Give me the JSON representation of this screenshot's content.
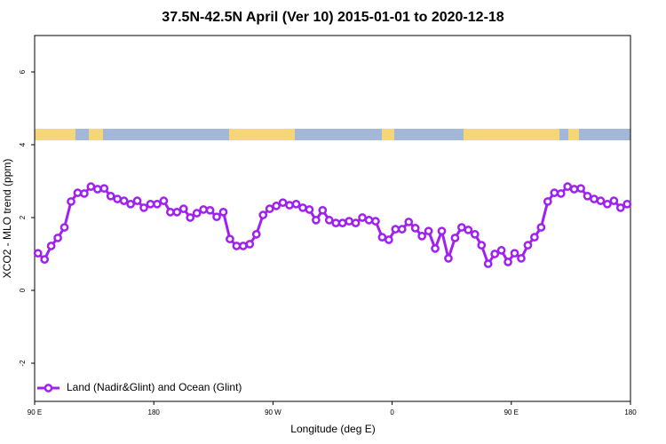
{
  "chart_data": {
    "type": "line",
    "title": "37.5N-42.5N April (Ver 10)   2015-01-01 to 2020-12-18",
    "x_label": "Longitude (deg E)",
    "y_label": "XCO2 - MLO trend (ppm)",
    "xlim": [
      90,
      540
    ],
    "ylim": [
      -3,
      7
    ],
    "xticks": [
      {
        "value": 90,
        "label": "90 E"
      },
      180,
      {
        "value": 270,
        "label": "90 W"
      },
      {
        "value": 360,
        "label": "0"
      },
      {
        "value": 450,
        "label": "90 E"
      },
      {
        "value": 540,
        "label": "180"
      }
    ],
    "yticks": [
      -2,
      0,
      2,
      4,
      6
    ],
    "legend": "bottom-left",
    "x": [
      92.5,
      97.5,
      102.5,
      107.5,
      112.5,
      117.5,
      122.5,
      127.5,
      132.5,
      137.5,
      142.5,
      147.5,
      152.5,
      157.5,
      162.5,
      167.5,
      172.5,
      177.5,
      182.5,
      187.5,
      192.5,
      197.5,
      202.5,
      207.5,
      212.5,
      217.5,
      222.5,
      227.5,
      232.5,
      237.5,
      242.5,
      247.5,
      252.5,
      257.5,
      262.5,
      267.5,
      272.5,
      277.5,
      282.5,
      287.5,
      292.5,
      297.5,
      302.5,
      307.5,
      312.5,
      317.5,
      322.5,
      327.5,
      332.5,
      337.5,
      342.5,
      347.5,
      352.5,
      357.5,
      362.5,
      367.5,
      372.5,
      377.5,
      382.5,
      387.5,
      392.5,
      397.5,
      402.5,
      407.5,
      412.5,
      417.5,
      422.5,
      427.5,
      432.5,
      437.5,
      442.5,
      447.5,
      452.5,
      457.5,
      462.5,
      467.5,
      472.5,
      477.5,
      482.5,
      487.5,
      492.5,
      497.5,
      502.5,
      507.5,
      512.5,
      517.5,
      522.5,
      527.5,
      532.5,
      537.5
    ],
    "series": [
      {
        "name": "Land (Nadir&Glint) and Ocean (Glint)",
        "color": "#a020f0",
        "values": [
          1.02,
          0.85,
          1.22,
          1.44,
          1.73,
          2.44,
          2.68,
          2.66,
          2.85,
          2.78,
          2.8,
          2.59,
          2.51,
          2.46,
          2.37,
          2.46,
          2.27,
          2.37,
          2.37,
          2.46,
          2.15,
          2.15,
          2.24,
          2.0,
          2.12,
          2.22,
          2.2,
          2.02,
          2.15,
          1.41,
          1.22,
          1.22,
          1.27,
          1.54,
          2.07,
          2.24,
          2.32,
          2.41,
          2.34,
          2.37,
          2.27,
          2.22,
          1.93,
          2.2,
          1.93,
          1.85,
          1.85,
          1.9,
          1.85,
          2.0,
          1.93,
          1.9,
          1.46,
          1.39,
          1.68,
          1.68,
          1.88,
          1.71,
          1.49,
          1.63,
          1.15,
          1.63,
          0.88,
          1.44,
          1.73,
          1.66,
          1.54,
          1.24,
          0.73,
          1.0,
          1.1,
          0.78,
          1.02,
          0.88,
          1.24,
          1.46,
          1.73,
          2.44,
          2.68,
          2.66,
          2.85,
          2.78,
          2.8,
          2.59,
          2.51,
          2.46,
          2.37,
          2.46,
          2.27,
          2.37
        ]
      }
    ]
  }
}
